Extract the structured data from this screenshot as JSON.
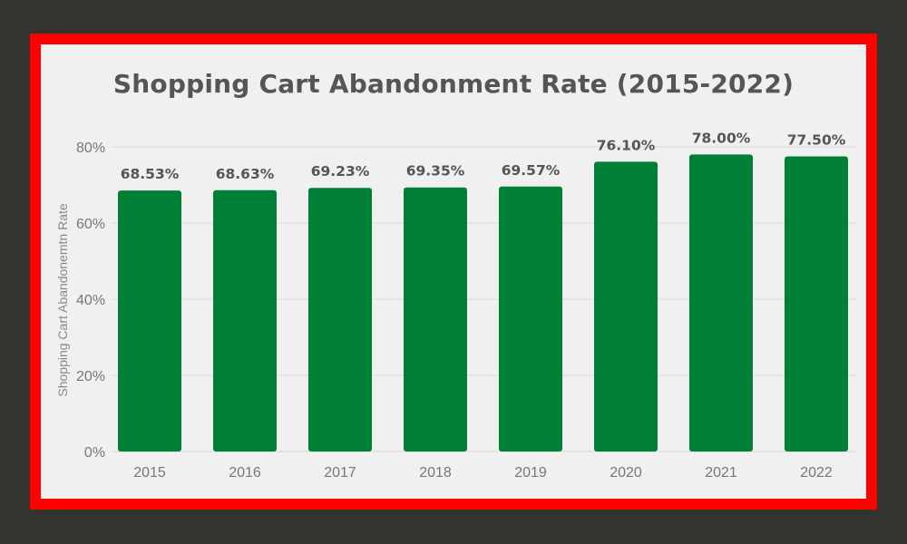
{
  "colors": {
    "background": "#33332f",
    "border": "#ff0000",
    "panel": "#f0f0f0",
    "bar": "#008037",
    "grid": "#d9d9d9",
    "text": "#555555"
  },
  "chart_data": {
    "type": "bar",
    "title": "Shopping Cart Abandonment Rate (2015-2022)",
    "xlabel": "",
    "ylabel": "Shopping Cart Abandonemtn Rate",
    "categories": [
      "2015",
      "2016",
      "2017",
      "2018",
      "2019",
      "2020",
      "2021",
      "2022"
    ],
    "values": [
      68.53,
      68.63,
      69.23,
      69.35,
      69.57,
      76.1,
      78.0,
      77.5
    ],
    "data_labels": [
      "68.53%",
      "68.63%",
      "69.23%",
      "69.35%",
      "69.57%",
      "76.10%",
      "78.00%",
      "77.50%"
    ],
    "ylim": [
      0,
      80
    ],
    "y_ticks": [
      0,
      20,
      40,
      60,
      80
    ],
    "y_tick_labels": [
      "0%",
      "20%",
      "40%",
      "60%",
      "80%"
    ],
    "grid": true,
    "legend": "none"
  }
}
